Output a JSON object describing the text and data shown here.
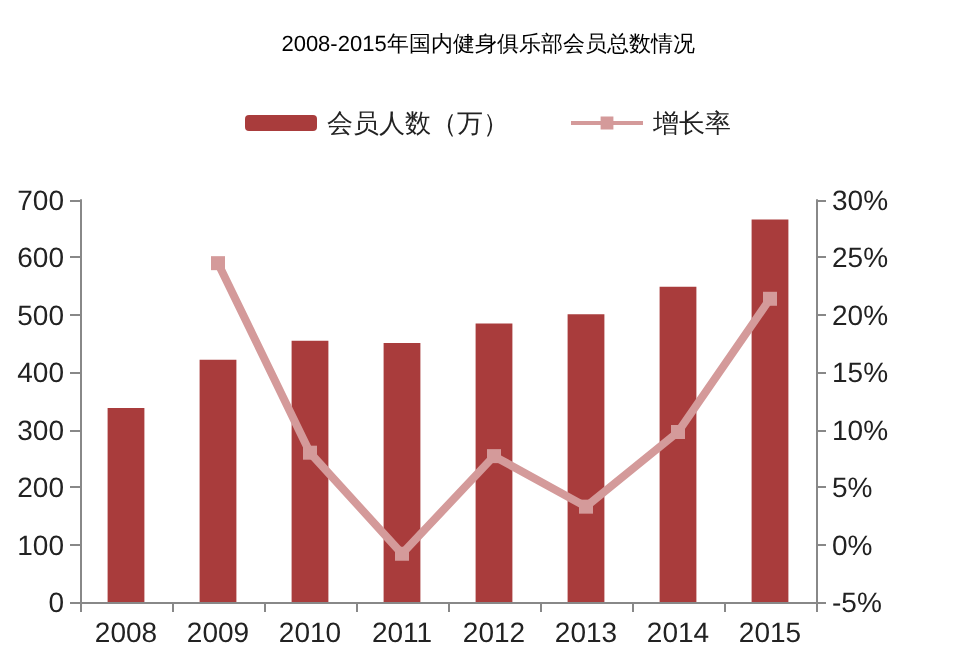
{
  "chart_data": {
    "type": "bar",
    "title": "2008-2015年国内健身俱乐部会员总数情况",
    "categories": [
      "2008",
      "2009",
      "2010",
      "2011",
      "2012",
      "2013",
      "2014",
      "2015"
    ],
    "series": [
      {
        "name": "会员人数（万）",
        "color": "#a93c3c",
        "values": [
          338,
          422,
          455,
          451,
          485,
          501,
          549,
          666
        ]
      },
      {
        "name": "增长率",
        "type": "line",
        "axis": "y2",
        "color": "#d49a9a",
        "marker": "square",
        "values": [
          null,
          24.5,
          8.0,
          -0.8,
          7.7,
          3.3,
          9.8,
          21.4
        ]
      }
    ],
    "ylim": [
      0,
      700
    ],
    "yticks": [
      0,
      100,
      200,
      300,
      400,
      500,
      600,
      700
    ],
    "y2lim": [
      -5,
      30
    ],
    "y2ticks": [
      {
        "value": -5,
        "label": "-5%"
      },
      {
        "value": 0,
        "label": "0%"
      },
      {
        "value": 5,
        "label": "5%"
      },
      {
        "value": 10,
        "label": "10%"
      },
      {
        "value": 15,
        "label": "15%"
      },
      {
        "value": 20,
        "label": "20%"
      },
      {
        "value": 25,
        "label": "25%"
      },
      {
        "value": 30,
        "label": "30%"
      }
    ],
    "grid": false,
    "legend": "top"
  }
}
